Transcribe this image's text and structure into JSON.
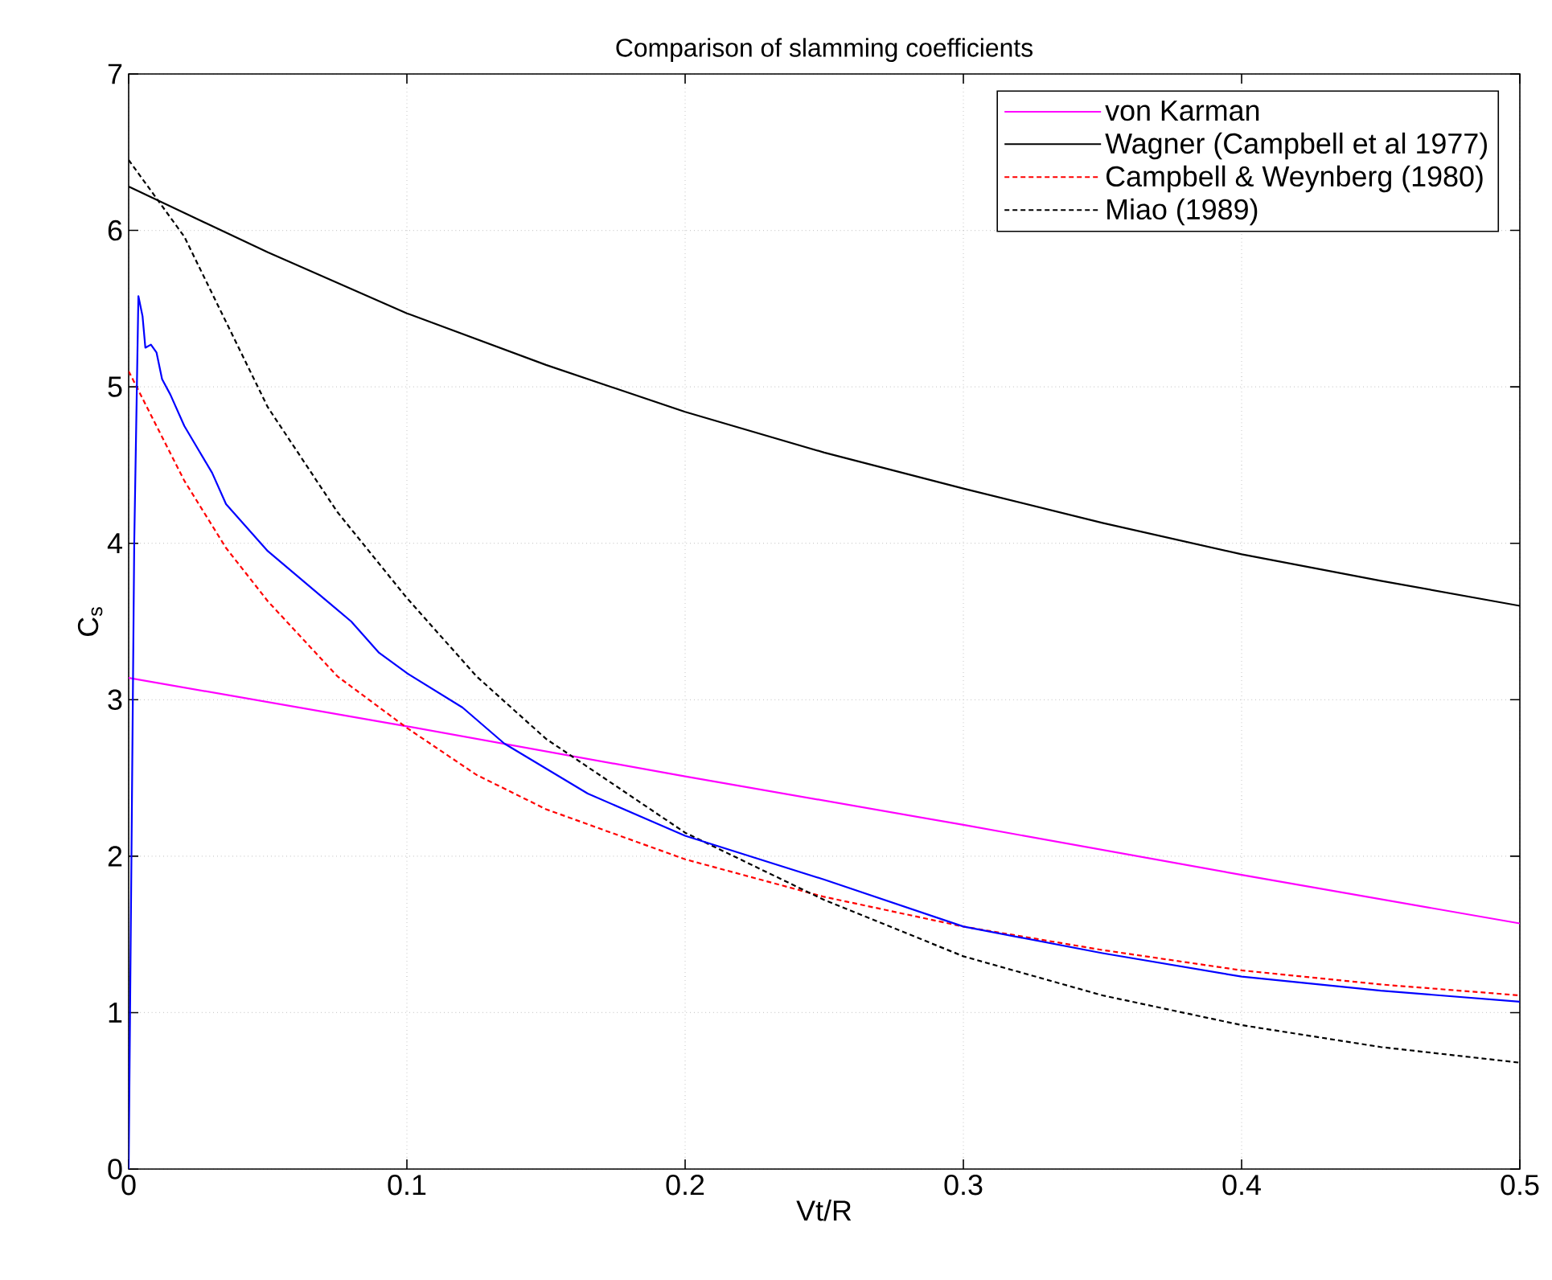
{
  "chart_data": {
    "type": "line",
    "title": "Comparison of slamming coefficients",
    "xlabel": "Vt/R",
    "ylabel": "C$_{s}$",
    "xlim": [
      0,
      0.5
    ],
    "ylim": [
      0,
      7
    ],
    "xticks": [
      0,
      0.1,
      0.2,
      0.3,
      0.4,
      0.5
    ],
    "yticks": [
      0,
      1,
      2,
      3,
      4,
      5,
      6,
      7
    ],
    "grid": true,
    "legend": "top right",
    "marker": "none",
    "series": [
      {
        "name": "von Karman",
        "color": "#ff00ff",
        "line_style": "solid",
        "x": [
          0,
          0.1,
          0.2,
          0.3,
          0.4,
          0.5
        ],
        "values": [
          3.14,
          2.83,
          2.51,
          2.2,
          1.88,
          1.57
        ]
      },
      {
        "name": "Wagner (Campbell et al 1977)",
        "color": "#000000",
        "line_style": "solid",
        "x": [
          0,
          0.05,
          0.1,
          0.15,
          0.2,
          0.25,
          0.3,
          0.35,
          0.4,
          0.45,
          0.5
        ],
        "values": [
          6.28,
          5.86,
          5.47,
          5.14,
          4.84,
          4.58,
          4.35,
          4.13,
          3.93,
          3.76,
          3.6
        ]
      },
      {
        "name": "Campbell & Weynberg (1980)",
        "color": "#ff0000",
        "line_style": "dashed",
        "x": [
          0,
          0.01,
          0.02,
          0.035,
          0.05,
          0.075,
          0.1,
          0.125,
          0.15,
          0.2,
          0.25,
          0.3,
          0.35,
          0.4,
          0.45,
          0.5
        ],
        "values": [
          5.1,
          4.75,
          4.4,
          3.97,
          3.63,
          3.15,
          2.82,
          2.52,
          2.3,
          1.98,
          1.74,
          1.55,
          1.4,
          1.27,
          1.18,
          1.11
        ]
      },
      {
        "name": "Miao (1989)",
        "color": "#000000",
        "line_style": "dashed",
        "x": [
          0,
          0.02,
          0.05,
          0.075,
          0.1,
          0.125,
          0.15,
          0.2,
          0.25,
          0.3,
          0.35,
          0.4,
          0.45,
          0.5
        ],
        "values": [
          6.45,
          5.96,
          4.87,
          4.2,
          3.65,
          3.15,
          2.75,
          2.15,
          1.72,
          1.36,
          1.11,
          0.92,
          0.78,
          0.68
        ]
      },
      {
        "color": "#0000ff",
        "line_style": "solid",
        "x": [
          0,
          0.001,
          0.002,
          0.0035,
          0.005,
          0.006,
          0.008,
          0.01,
          0.012,
          0.015,
          0.02,
          0.025,
          0.03,
          0.035,
          0.04,
          0.05,
          0.06,
          0.07,
          0.08,
          0.09,
          0.1,
          0.12,
          0.135,
          0.165,
          0.2,
          0.25,
          0.3,
          0.35,
          0.4,
          0.45,
          0.5
        ],
        "values": [
          0,
          2.0,
          4.0,
          5.58,
          5.45,
          5.25,
          5.27,
          5.22,
          5.05,
          4.95,
          4.75,
          4.6,
          4.45,
          4.25,
          4.15,
          3.95,
          3.8,
          3.65,
          3.5,
          3.3,
          3.17,
          2.95,
          2.72,
          2.4,
          2.13,
          1.85,
          1.55,
          1.38,
          1.23,
          1.14,
          1.07
        ]
      }
    ]
  }
}
